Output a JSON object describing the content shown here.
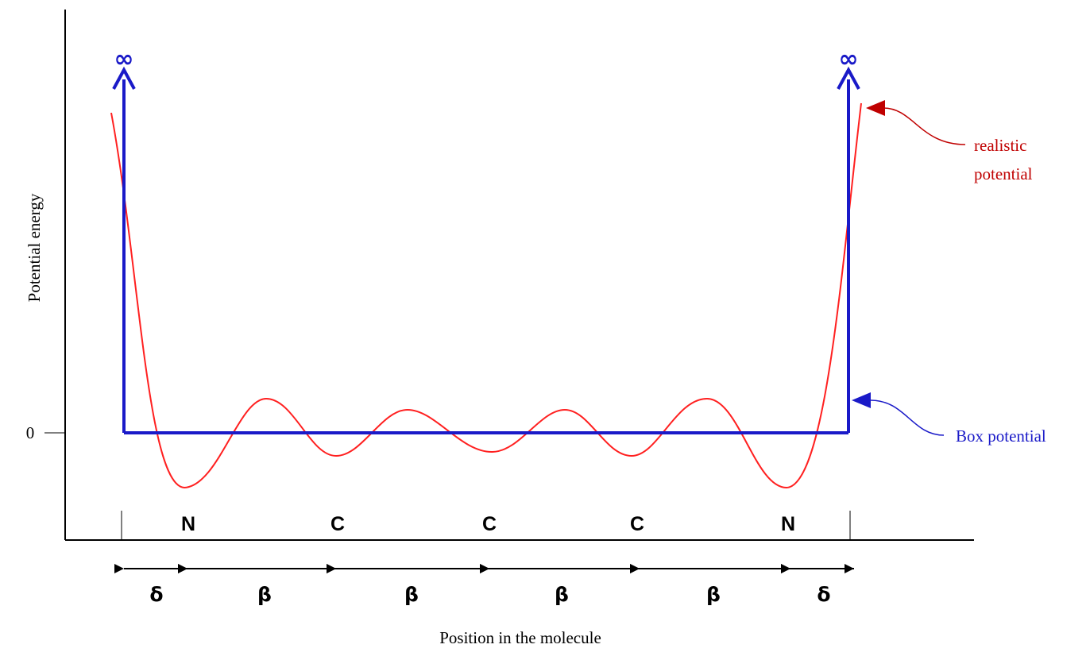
{
  "axes": {
    "y_label": "Potential energy",
    "x_label": "Position in the molecule",
    "zero_tick": "0"
  },
  "infinity_symbol": "∞",
  "legend": {
    "realistic_line1": "realistic",
    "realistic_line2": "potential",
    "box": "Box potential"
  },
  "atoms": [
    "N",
    "C",
    "C",
    "C",
    "N"
  ],
  "segments": [
    "δ",
    "β",
    "β",
    "β",
    "β",
    "δ"
  ],
  "colors": {
    "box": "#1a1ac8",
    "realistic": "#ff2020",
    "realistic_arrow": "#c00000",
    "axis": "#000000"
  }
}
